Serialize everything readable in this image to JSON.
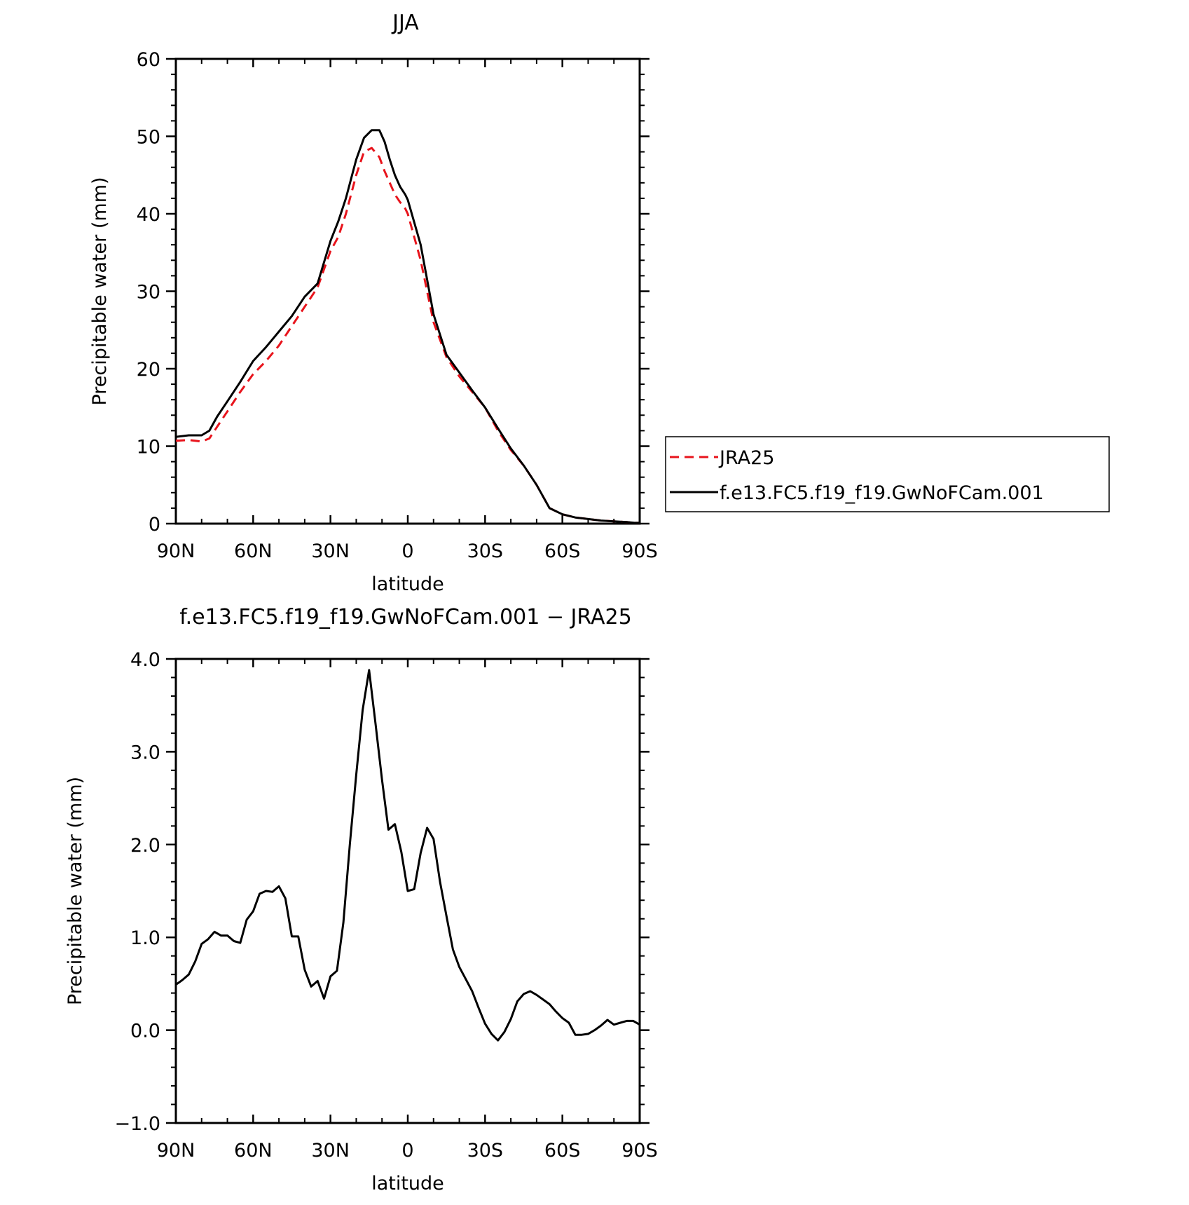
{
  "chart_data": [
    {
      "type": "line",
      "title": "JJA",
      "xlabel": "latitude",
      "ylabel": "Precipitable water (mm)",
      "xlim": [
        90,
        -90
      ],
      "ylim": [
        0,
        60
      ],
      "x_ticks": [
        {
          "value": 90,
          "label": "90N"
        },
        {
          "value": 60,
          "label": "60N"
        },
        {
          "value": 30,
          "label": "30N"
        },
        {
          "value": 0,
          "label": "0"
        },
        {
          "value": -30,
          "label": "30S"
        },
        {
          "value": -60,
          "label": "60S"
        },
        {
          "value": -90,
          "label": "90S"
        }
      ],
      "y_ticks": [
        {
          "value": 0,
          "label": "0"
        },
        {
          "value": 10,
          "label": "10"
        },
        {
          "value": 20,
          "label": "20"
        },
        {
          "value": 30,
          "label": "30"
        },
        {
          "value": 40,
          "label": "40"
        },
        {
          "value": 50,
          "label": "50"
        },
        {
          "value": 60,
          "label": "60"
        }
      ],
      "legend": "outside right",
      "series": [
        {
          "name": "JRA25",
          "color": "#e8141c",
          "dash": "dashed",
          "x": [
            90,
            85,
            80,
            77,
            74,
            70,
            65,
            60,
            55,
            50,
            45,
            40,
            35,
            30,
            27,
            24,
            20,
            17,
            14,
            11,
            9,
            7,
            5,
            3,
            1,
            0,
            -5,
            -10,
            -15,
            -20,
            -25,
            -30,
            -35,
            -40,
            -45,
            -50,
            -55,
            -60,
            -65,
            -70,
            -75,
            -80,
            -85,
            -88,
            -90
          ],
          "y": [
            10.7,
            10.8,
            10.6,
            11.0,
            12.5,
            14.5,
            17.0,
            19.3,
            21.0,
            23.0,
            25.5,
            28.0,
            30.5,
            35.2,
            37.0,
            40.0,
            45.0,
            48.0,
            48.5,
            47.3,
            45.5,
            44.0,
            42.5,
            41.5,
            40.7,
            40.0,
            34.0,
            26.0,
            21.5,
            19.0,
            17.0,
            15.0,
            12.0,
            9.5,
            7.5,
            5.0,
            2.0,
            1.2,
            0.8,
            0.6,
            0.4,
            0.3,
            0.2,
            0.1,
            0.1
          ],
          "xy_note_dummy": null
        },
        {
          "name": "f.e13.FC5.f19_f19.GwNoFCam.001",
          "color": "#000000",
          "dash": "solid",
          "x": [
            90,
            85,
            80,
            77,
            74,
            70,
            65,
            60,
            55,
            50,
            45,
            40,
            35,
            30,
            27,
            24,
            20,
            17,
            14,
            11,
            9,
            7,
            5,
            3,
            1,
            0,
            -5,
            -10,
            -15,
            -20,
            -25,
            -30,
            -35,
            -40,
            -45,
            -50,
            -55,
            -60,
            -65,
            -70,
            -75,
            -80,
            -85,
            -88,
            -90
          ],
          "y": [
            11.2,
            11.4,
            11.4,
            12.0,
            13.8,
            15.8,
            18.3,
            21.0,
            22.8,
            24.8,
            26.8,
            29.3,
            31.0,
            36.5,
            39.0,
            42.0,
            47.0,
            49.8,
            50.8,
            50.8,
            49.3,
            47.0,
            45.0,
            43.5,
            42.5,
            41.8,
            36.0,
            27.0,
            21.8,
            19.5,
            17.2,
            15.0,
            12.3,
            9.7,
            7.5,
            5.0,
            2.0,
            1.2,
            0.8,
            0.6,
            0.4,
            0.3,
            0.2,
            0.1,
            0.1
          ]
        }
      ]
    },
    {
      "type": "line",
      "title": "f.e13.FC5.f19_f19.GwNoFCam.001 − JRA25",
      "xlabel": "latitude",
      "ylabel": "Precipitable water (mm)",
      "xlim": [
        90,
        -90
      ],
      "ylim": [
        -1.0,
        4.0
      ],
      "x_ticks": [
        {
          "value": 90,
          "label": "90N"
        },
        {
          "value": 60,
          "label": "60N"
        },
        {
          "value": 30,
          "label": "30N"
        },
        {
          "value": 0,
          "label": "0"
        },
        {
          "value": -30,
          "label": "30S"
        },
        {
          "value": -60,
          "label": "60S"
        },
        {
          "value": -90,
          "label": "90S"
        }
      ],
      "y_ticks": [
        {
          "value": -1.0,
          "label": "−1.0"
        },
        {
          "value": 0.0,
          "label": "0.0"
        },
        {
          "value": 1.0,
          "label": "1.0"
        },
        {
          "value": 2.0,
          "label": "2.0"
        },
        {
          "value": 3.0,
          "label": "3.0"
        },
        {
          "value": 4.0,
          "label": "4.0"
        }
      ],
      "series": [
        {
          "color": "#000000",
          "dash": "solid",
          "x": [
            90,
            87.5,
            85,
            82.5,
            80,
            77.5,
            75,
            72.5,
            70,
            67.5,
            65,
            62.5,
            60,
            57.5,
            55,
            52.5,
            50,
            47.5,
            45,
            42.5,
            40,
            37.5,
            35,
            32.5,
            30,
            27.5,
            25,
            22.5,
            20,
            17.5,
            15,
            12.5,
            10,
            7.5,
            5,
            2.5,
            0,
            -2.5,
            -5,
            -7.5,
            -10,
            -12.5,
            -15,
            -17.5,
            -20,
            -22.5,
            -25,
            -27.5,
            -30,
            -32.5,
            -35,
            -37.5,
            -40,
            -42.5,
            -45,
            -47.5,
            -50,
            -52.5,
            -55,
            -57.5,
            -60,
            -62.5,
            -65,
            -67.5,
            -70,
            -72.5,
            -75,
            -77.5,
            -80,
            -82.5,
            -85,
            -87.5,
            -90
          ],
          "y": [
            0.49,
            0.54,
            0.6,
            0.74,
            0.93,
            0.98,
            1.06,
            1.02,
            1.02,
            0.96,
            0.94,
            1.19,
            1.28,
            1.47,
            1.5,
            1.49,
            1.55,
            1.42,
            1.01,
            1.01,
            0.65,
            0.47,
            0.53,
            0.34,
            0.58,
            0.64,
            1.16,
            2.0,
            2.75,
            3.45,
            3.88,
            3.3,
            2.7,
            2.16,
            2.22,
            1.92,
            1.5,
            1.52,
            1.91,
            2.18,
            2.06,
            1.6,
            1.23,
            0.87,
            0.68,
            0.55,
            0.42,
            0.24,
            0.07,
            -0.04,
            -0.11,
            -0.02,
            0.12,
            0.31,
            0.39,
            0.42,
            0.38,
            0.33,
            0.28,
            0.2,
            0.13,
            0.08,
            -0.05,
            -0.05,
            -0.04,
            0.0,
            0.05,
            0.11,
            0.06,
            0.08,
            0.1,
            0.1,
            0.06
          ]
        }
      ]
    }
  ]
}
